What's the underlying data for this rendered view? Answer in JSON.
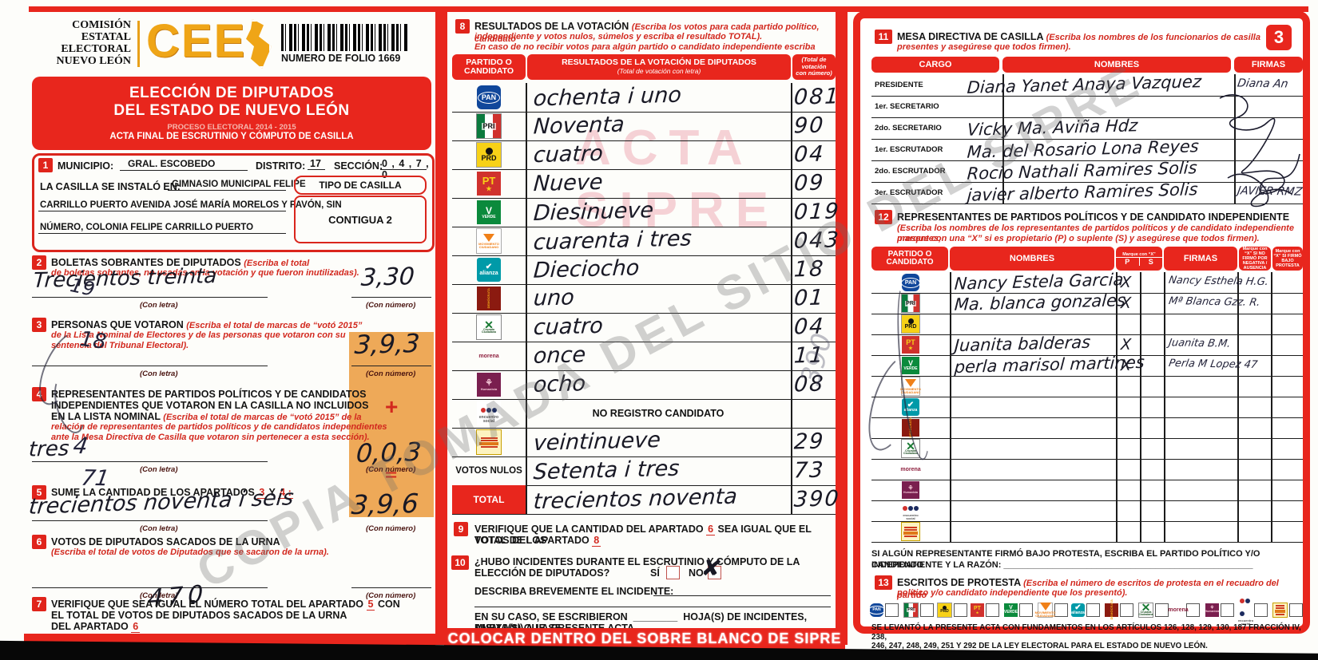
{
  "page": {
    "number_badge": "3"
  },
  "header": {
    "agency_lines": [
      "COMISIÓN",
      "ESTATAL",
      "ELECTORAL",
      "NUEVO LEÓN"
    ],
    "logo_text": "CEE",
    "folio_label": "NUMERO DE FOLIO 1669",
    "title_line1": "ELECCIÓN DE DIPUTADOS",
    "title_line2": "DEL ESTADO DE NUEVO LEÓN",
    "subtitle1": "PROCESO ELECTORAL  2014 - 2015",
    "subtitle2": "ACTA FINAL DE ESCRUTINIO Y CÓMPUTO DE CASILLA"
  },
  "section1": {
    "num": "1",
    "municipio_label": "MUNICIPIO:",
    "municipio": "GRAL. ESCOBEDO",
    "distrito_label": "DISTRITO:",
    "distrito": "17",
    "seccion_label": "SECCIÓN:",
    "seccion": "0 , 4 , 7 , 0",
    "casilla_label": "LA CASILLA SE INSTALÓ EN:",
    "address1": "GIMNASIO MUNICIPAL FELIPE",
    "address2": "CARRILLO PUERTO AVENIDA JOSÉ MARÍA MORELOS Y PAVÓN, SIN",
    "address3": "NÚMERO, COLONIA FELIPE CARRILLO PUERTO",
    "tipo_label": "TIPO DE CASILLA",
    "tipo": "CONTIGUA 2"
  },
  "section2": {
    "num": "2",
    "title": "BOLETAS SOBRANTES DE DIPUTADOS",
    "note1": "(Escriba el total",
    "note2": "de boletas sobrantes, no usadas en la votación y que fueron inutilizadas).",
    "hw_letra": "Trecientos  treinta",
    "hw_numero": "3,30",
    "con_letra": "(Con letra)",
    "con_numero": "(Con número)"
  },
  "section3": {
    "num": "3",
    "title": "PERSONAS QUE VOTARON",
    "note1": "(Escriba el total de marcas de “votó 2015”",
    "note2": "de la Lista Nominal de Electores y de las personas que votaron con su",
    "note3": "sentencia del Tribunal Electoral).",
    "hw_numero": "3,9,3",
    "con_letra": "(Con letra)",
    "con_numero": "(Con número)"
  },
  "section4": {
    "num": "4",
    "title1": "REPRESENTANTES DE PARTIDOS POLÍTICOS Y DE CANDIDATOS",
    "title2": "INDEPENDIENTES QUE VOTARON EN LA CASILLA NO INCLUIDOS",
    "title3": "EN LA LISTA NOMINAL",
    "note1": "(Escriba el total de marcas de “votó 2015” de la",
    "note2": "relación de representantes de partidos políticos y de candidatos independientes",
    "note3": "ante la Mesa Directiva de Casilla que votaron sin pertenecer a esta sección).",
    "hw_letra": "tres",
    "hw_numero": "0,0,3",
    "con_letra": "(Con letra)",
    "con_numero": "(Con número)"
  },
  "section5": {
    "num": "5",
    "title": "SUME LA CANTIDAD DE LOS APARTADOS",
    "ref3": "3",
    "y_label": "Y",
    "ref4": "4 :",
    "hw_letra": "trecientos noventa i seis",
    "hw_numero": "3,9,6",
    "con_letra": "(Con letra)",
    "con_numero": "(Con número)"
  },
  "section6": {
    "num": "6",
    "title": "VOTOS DE DIPUTADOS SACADOS DE LA URNA",
    "note": "(Escriba el total de votos de Diputados que se sacaron de la urna).",
    "con_letra": "(Con letra)",
    "con_numero": "(Con número)",
    "hw_stray": "470"
  },
  "section7": {
    "num": "7",
    "t1": "VERIFIQUE QUE SEA IGUAL EL NÚMERO TOTAL DEL APARTADO",
    "r1": "5",
    "t2": "CON",
    "t3": "EL TOTAL DE VOTOS DE DIPUTADOS SACADOS DE LA URNA",
    "t4": "DEL APARTADO",
    "r2": "6"
  },
  "stray_marks": {
    "m1": "19",
    "m2": "18",
    "m3": "4",
    "m4": "71",
    "m5": "390"
  },
  "plus_sign": "+",
  "equals_sign": "=",
  "section8": {
    "num": "8",
    "title": "RESULTADOS DE LA VOTACIÓN",
    "note1": "(Escriba los votos para cada partido político, candidato",
    "note2": "independiente y votos nulos, súmelos y escriba el resultado TOTAL).",
    "note3": "En caso de no recibir votos para algún partido o candidato independiente escriba ceros.",
    "th_party1": "PARTIDO O",
    "th_party2": "CANDIDATO",
    "th_letra1": "RESULTADOS DE LA VOTACIÓN DE DIPUTADOS",
    "th_letra2": "(Total de votación con letra)",
    "th_num1": "(Total de votación",
    "th_num2": "con número)",
    "no_registro": "NO REGISTRO CANDIDATO",
    "nulos_label": "VOTOS NULOS",
    "total_label": "TOTAL",
    "rows": [
      {
        "p": "pan",
        "letra": "ochenta i uno",
        "num": "081"
      },
      {
        "p": "pri",
        "letra": "Noventa",
        "num": "90"
      },
      {
        "p": "prd",
        "letra": "cuatro",
        "num": "04"
      },
      {
        "p": "pt",
        "letra": "Nueve",
        "num": "09"
      },
      {
        "p": "verde",
        "letra": "Diesinueve",
        "num": "019"
      },
      {
        "p": "mc",
        "letra": "cuarenta i tres",
        "num": "043"
      },
      {
        "p": "na",
        "letra": "Dieciocho",
        "num": "18"
      },
      {
        "p": "pd",
        "letra": "uno",
        "num": "01"
      },
      {
        "p": "cc",
        "letra": "cuatro",
        "num": "04"
      },
      {
        "p": "morena",
        "letra": "once",
        "num": "11"
      },
      {
        "p": "ph",
        "letra": "ocho",
        "num": "08"
      },
      {
        "p": "pes",
        "letra": "",
        "num": "",
        "special": "NO REGISTRO CANDIDATO"
      },
      {
        "p": "ci",
        "letra": "veintinueve",
        "num": "29"
      },
      {
        "p": "nulos",
        "letra": "Setenta i tres",
        "num": "73"
      },
      {
        "p": "total",
        "letra": "trecientos noventa",
        "num": "390"
      }
    ]
  },
  "section9": {
    "num": "9",
    "t1": "VERIFIQUE QUE LA CANTIDAD DEL APARTADO",
    "r1": "6",
    "t2": "SEA IGUAL QUE EL TOTAL DE LOS",
    "t3": "VOTOS DEL APARTADO",
    "r2": "8"
  },
  "section10": {
    "num": "10",
    "q1": "¿HUBO INCIDENTES DURANTE EL ESCRUTINIO Y CÓMPUTO DE LA",
    "q2": "ELECCIÓN DE DIPUTADOS?",
    "si": "SÍ",
    "no": "NO",
    "x_mark": "✘",
    "describa": "DESCRIBA BREVEMENTE EL INCIDENTE:",
    "caso1": "EN SU CASO, SE ESCRIBIERON",
    "caso2": "HOJA(S) DE INCIDENTES, MISMA(S) QUE SE",
    "caso3": "ANEXA(N) A LA PRESENTE ACTA."
  },
  "banner": "COLOCAR DENTRO DEL SOBRE BLANCO DE SIPRE",
  "section11": {
    "num": "11",
    "title": "MESA DIRECTIVA DE CASILLA",
    "note1": "(Escriba los nombres de los funcionarios de casilla",
    "note2": "presentes y asegúrese que todos firmen).",
    "h_cargo": "CARGO",
    "h_nombres": "NOMBRES",
    "h_firmas": "FIRMAS",
    "rows": [
      {
        "cargo": "PRESIDENTE",
        "nombre": "Diana Yanet Anaya Vazquez",
        "firma": "Diana An"
      },
      {
        "cargo": "1er. SECRETARIO",
        "nombre": "",
        "firma": ""
      },
      {
        "cargo": "2do. SECRETARIO",
        "nombre": "Vicky Ma. Aviña Hdz",
        "firma": ""
      },
      {
        "cargo": "1er. ESCRUTADOR",
        "nombre": "Ma. del Rosario Lona Reyes",
        "firma": ""
      },
      {
        "cargo": "2do. ESCRUTADOR",
        "nombre": "Rocio Nathali Ramires Solis",
        "firma": ""
      },
      {
        "cargo": "3er. ESCRUTADOR",
        "nombre": "javier alberto Ramires Solis",
        "firma": "JAVIER RMZ"
      }
    ]
  },
  "section12": {
    "num": "12",
    "title": "REPRESENTANTES DE PARTIDOS POLÍTICOS Y DE CANDIDATO INDEPENDIENTE",
    "note1": "(Escriba los nombres de los representantes de partidos políticos y de candidato independiente presentes,",
    "note2": "marque con una “X” si es propietario (P) o suplente (S) y asegúrese que todos firmen).",
    "h_party1": "PARTIDO O",
    "h_party2": "CANDIDATO",
    "h_nombres": "NOMBRES",
    "h_marque": "Marque con “X”",
    "h_p": "P",
    "h_s": "S",
    "h_firmas": "FIRMAS",
    "h_neg": "Marque con “X” SI NO FIRMÓ POR NEGATIVA / AUSENCIA",
    "h_prot": "Marque con “X” SI FIRMÓ BAJO PROTESTA",
    "rows": [
      {
        "p": "pan",
        "nombre": "Nancy Estela Garcia",
        "px": "X",
        "firma": "Nancy Esthela H.G."
      },
      {
        "p": "pri",
        "nombre": "Ma. blanca gonzales",
        "px": "X",
        "firma": "Mª Blanca Gzz. R."
      },
      {
        "p": "prd",
        "nombre": "",
        "px": "",
        "firma": ""
      },
      {
        "p": "pt",
        "nombre": "Juanita balderas",
        "px": "X",
        "firma": "Juanita B.M."
      },
      {
        "p": "verde",
        "nombre": "perla marisol martines",
        "px": "X",
        "firma": "Perla M Lopez 47"
      },
      {
        "p": "mc",
        "nombre": "",
        "px": "",
        "firma": ""
      },
      {
        "p": "na",
        "nombre": "",
        "px": "",
        "firma": ""
      },
      {
        "p": "pd",
        "nombre": "",
        "px": "",
        "firma": ""
      },
      {
        "p": "cc",
        "nombre": "",
        "px": "",
        "firma": ""
      },
      {
        "p": "morena",
        "nombre": "",
        "px": "",
        "firma": ""
      },
      {
        "p": "ph",
        "nombre": "",
        "px": "",
        "firma": ""
      },
      {
        "p": "pes",
        "nombre": "",
        "px": "",
        "firma": ""
      },
      {
        "p": "ci",
        "nombre": "",
        "px": "",
        "firma": ""
      }
    ]
  },
  "protesta_line1": "SI ALGÚN REPRESENTANTE FIRMÓ BAJO PROTESTA, ESCRIBA EL PARTIDO POLÍTICO Y/O CANDIDATO",
  "protesta_line2": "INDEPENDIENTE Y LA RAZÓN:",
  "section13": {
    "num": "13",
    "title": "ESCRITOS DE PROTESTA",
    "note1": "(Escriba el número de escritos de protesta en el recuadro del partido",
    "note2": "político y/o candidato independiente que los presentó)."
  },
  "legal1": "SE LEVANTÓ LA PRESENTE ACTA CON FUNDAMENTOS EN LOS ARTÍCULOS 126, 128, 129, 130, 187 FRACCIÓN IV, 238,",
  "legal2": "246, 247, 248, 249, 251 Y 292 DE LA LEY ELECTORAL PARA EL ESTADO DE NUEVO LEÓN.",
  "watermarks": {
    "acta": "ACTA",
    "sipre": "SIPRE",
    "copia": "COPIA TOMADA DEL SITIO DEL SIPRE"
  },
  "parties": {
    "pan": {
      "label": "PAN"
    },
    "pri": {
      "label": "PRI"
    },
    "prd": {
      "label": "PRD"
    },
    "pt": {
      "label": "PT"
    },
    "verde": {
      "label": "VERDE"
    },
    "mc": {
      "label": "MOVIMIENTO CIUDADANO"
    },
    "na": {
      "label": "alianza"
    },
    "pd": {
      "label": "DEMÓCRATA"
    },
    "cc": {
      "label": "Cruzada Ciudadana"
    },
    "morena": {
      "label": "morena"
    },
    "ph": {
      "label": "Humanista"
    },
    "pes": {
      "label": "encuentro social"
    }
  },
  "colors": {
    "form_red": "#e8261d",
    "orange_highlight": "#eda24a",
    "pan_blue": "#10479b"
  }
}
